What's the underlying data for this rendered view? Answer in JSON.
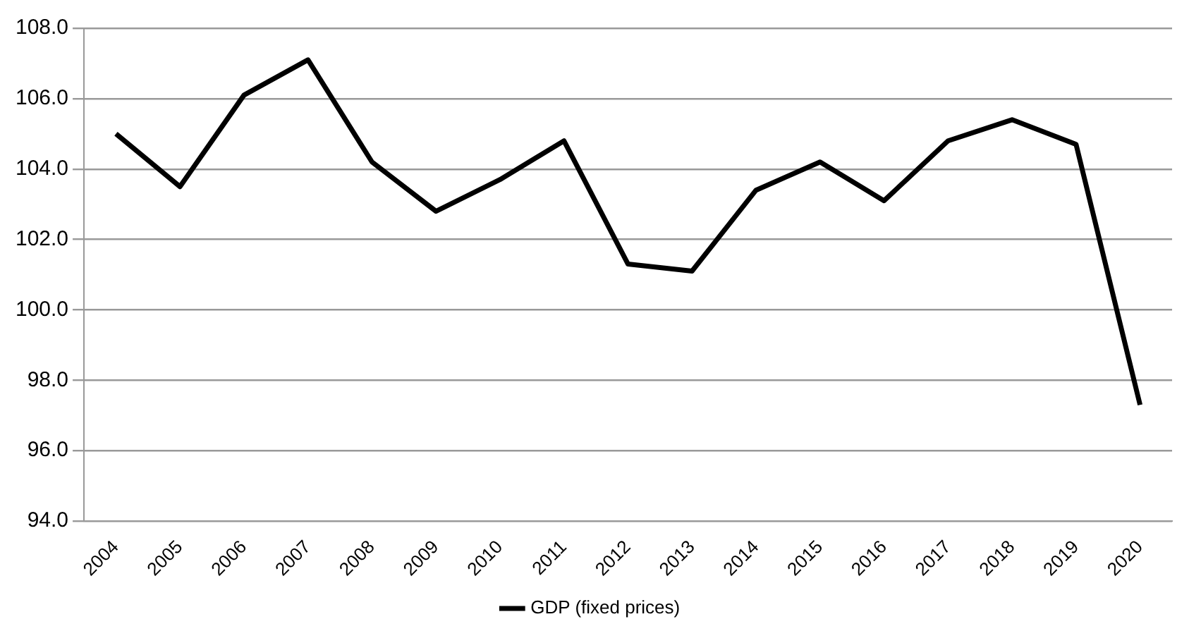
{
  "chart_data": {
    "type": "line",
    "categories": [
      "2004",
      "2005",
      "2006",
      "2007",
      "2008",
      "2009",
      "2010",
      "2011",
      "2012",
      "2013",
      "2014",
      "2015",
      "2016",
      "2017",
      "2018",
      "2019",
      "2020"
    ],
    "series": [
      {
        "name": "GDP (fixed prices)",
        "color": "#000000",
        "values": [
          105.0,
          103.5,
          106.1,
          107.1,
          104.2,
          102.8,
          103.7,
          104.8,
          101.3,
          101.1,
          103.4,
          104.2,
          103.1,
          104.8,
          105.4,
          104.7,
          97.3
        ]
      }
    ],
    "ylim": [
      94,
      108
    ],
    "yticks": [
      {
        "value": 94,
        "label": "94.0"
      },
      {
        "value": 96,
        "label": "96.0"
      },
      {
        "value": 98,
        "label": "98.0"
      },
      {
        "value": 100,
        "label": "100.0"
      },
      {
        "value": 102,
        "label": "102.0"
      },
      {
        "value": 104,
        "label": "104.0"
      },
      {
        "value": 106,
        "label": "106.0"
      },
      {
        "value": 108,
        "label": "108.0"
      }
    ],
    "grid": "y",
    "legend": "bottom",
    "marker": "none",
    "line_style": "solid"
  }
}
